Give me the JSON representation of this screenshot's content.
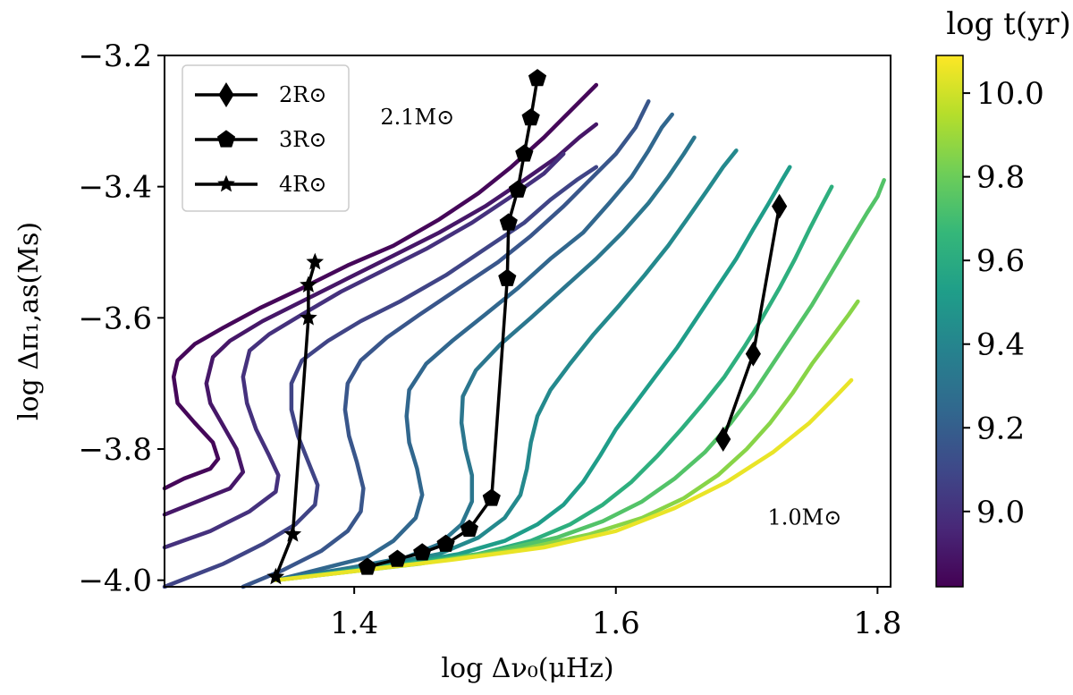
{
  "chart_data": {
    "type": "line",
    "xlabel": "log Δν₀(μHz)",
    "ylabel": "log Δπ₁,as(Ms)",
    "xlim": [
      1.255,
      1.81
    ],
    "ylim": [
      -4.01,
      -3.2
    ],
    "xticks": [
      1.4,
      1.6,
      1.8
    ],
    "xtick_labels": [
      "1.4",
      "1.6",
      "1.8"
    ],
    "yticks": [
      -3.2,
      -3.4,
      -3.6,
      -3.8,
      -4.0
    ],
    "ytick_labels": [
      "−3.2",
      "−3.4",
      "−3.6",
      "−3.8",
      "−4.0"
    ],
    "annotations": [
      {
        "text": "2.1M⊙",
        "x": 1.42,
        "y": -3.305
      },
      {
        "text": "1.0M⊙",
        "x": 1.716,
        "y": -3.915
      }
    ],
    "colorbar": {
      "title": "log t(yr)",
      "vmin": 8.82,
      "vmax": 10.09,
      "ticks": [
        9.0,
        9.2,
        9.4,
        9.6,
        9.8,
        10.0
      ],
      "tick_labels": [
        "9.0",
        "9.2",
        "9.4",
        "9.6",
        "9.8",
        "10.0"
      ],
      "colormap": [
        "#440154",
        "#482878",
        "#3e4989",
        "#31688e",
        "#26828e",
        "#1f9e89",
        "#35b779",
        "#6ece58",
        "#b5de2b",
        "#fde725"
      ]
    },
    "legend": {
      "position": "top-left",
      "entries": [
        {
          "label": "2R⊙",
          "marker": "diamond"
        },
        {
          "label": "3R⊙",
          "marker": "pentagon"
        },
        {
          "label": "4R⊙",
          "marker": "star"
        }
      ]
    },
    "tracks": [
      {
        "age": 8.84,
        "points": [
          [
            1.255,
            -3.86
          ],
          [
            1.27,
            -3.845
          ],
          [
            1.29,
            -3.83
          ],
          [
            1.296,
            -3.815
          ],
          [
            1.292,
            -3.79
          ],
          [
            1.278,
            -3.76
          ],
          [
            1.265,
            -3.73
          ],
          [
            1.262,
            -3.69
          ],
          [
            1.265,
            -3.665
          ],
          [
            1.278,
            -3.64
          ],
          [
            1.3,
            -3.615
          ],
          [
            1.328,
            -3.585
          ],
          [
            1.36,
            -3.555
          ],
          [
            1.395,
            -3.52
          ],
          [
            1.43,
            -3.49
          ],
          [
            1.465,
            -3.45
          ],
          [
            1.495,
            -3.41
          ],
          [
            1.52,
            -3.37
          ],
          [
            1.545,
            -3.325
          ],
          [
            1.56,
            -3.295
          ],
          [
            1.575,
            -3.265
          ],
          [
            1.585,
            -3.245
          ]
        ]
      },
      {
        "age": 8.9,
        "points": [
          [
            1.255,
            -3.9
          ],
          [
            1.28,
            -3.88
          ],
          [
            1.305,
            -3.86
          ],
          [
            1.315,
            -3.835
          ],
          [
            1.31,
            -3.8
          ],
          [
            1.3,
            -3.765
          ],
          [
            1.29,
            -3.73
          ],
          [
            1.287,
            -3.7
          ],
          [
            1.292,
            -3.66
          ],
          [
            1.305,
            -3.635
          ],
          [
            1.33,
            -3.605
          ],
          [
            1.36,
            -3.575
          ],
          [
            1.395,
            -3.54
          ],
          [
            1.43,
            -3.505
          ],
          [
            1.465,
            -3.47
          ],
          [
            1.5,
            -3.43
          ],
          [
            1.53,
            -3.39
          ],
          [
            1.555,
            -3.355
          ],
          [
            1.572,
            -3.325
          ],
          [
            1.585,
            -3.305
          ]
        ]
      },
      {
        "age": 9.0,
        "points": [
          [
            1.255,
            -3.95
          ],
          [
            1.29,
            -3.925
          ],
          [
            1.32,
            -3.895
          ],
          [
            1.34,
            -3.865
          ],
          [
            1.342,
            -3.84
          ],
          [
            1.335,
            -3.81
          ],
          [
            1.325,
            -3.77
          ],
          [
            1.318,
            -3.73
          ],
          [
            1.315,
            -3.69
          ],
          [
            1.32,
            -3.65
          ],
          [
            1.335,
            -3.625
          ],
          [
            1.36,
            -3.595
          ],
          [
            1.39,
            -3.56
          ],
          [
            1.42,
            -3.53
          ],
          [
            1.455,
            -3.495
          ],
          [
            1.49,
            -3.455
          ],
          [
            1.52,
            -3.415
          ],
          [
            1.545,
            -3.38
          ],
          [
            1.56,
            -3.35
          ]
        ]
      },
      {
        "age": 9.08,
        "points": [
          [
            1.255,
            -4.01
          ],
          [
            1.3,
            -3.975
          ],
          [
            1.33,
            -3.945
          ],
          [
            1.355,
            -3.915
          ],
          [
            1.37,
            -3.885
          ],
          [
            1.372,
            -3.855
          ],
          [
            1.365,
            -3.82
          ],
          [
            1.357,
            -3.78
          ],
          [
            1.352,
            -3.74
          ],
          [
            1.352,
            -3.7
          ],
          [
            1.36,
            -3.665
          ],
          [
            1.38,
            -3.635
          ],
          [
            1.405,
            -3.605
          ],
          [
            1.435,
            -3.575
          ],
          [
            1.47,
            -3.535
          ],
          [
            1.5,
            -3.495
          ],
          [
            1.53,
            -3.455
          ],
          [
            1.55,
            -3.42
          ],
          [
            1.57,
            -3.39
          ],
          [
            1.585,
            -3.37
          ]
        ]
      },
      {
        "age": 9.16,
        "points": [
          [
            1.315,
            -4.01
          ],
          [
            1.345,
            -3.985
          ],
          [
            1.375,
            -3.955
          ],
          [
            1.395,
            -3.925
          ],
          [
            1.405,
            -3.895
          ],
          [
            1.407,
            -3.86
          ],
          [
            1.402,
            -3.82
          ],
          [
            1.396,
            -3.78
          ],
          [
            1.393,
            -3.74
          ],
          [
            1.395,
            -3.7
          ],
          [
            1.405,
            -3.665
          ],
          [
            1.425,
            -3.63
          ],
          [
            1.45,
            -3.595
          ],
          [
            1.48,
            -3.555
          ],
          [
            1.51,
            -3.515
          ],
          [
            1.535,
            -3.475
          ],
          [
            1.56,
            -3.43
          ],
          [
            1.58,
            -3.39
          ],
          [
            1.6,
            -3.35
          ],
          [
            1.615,
            -3.31
          ],
          [
            1.625,
            -3.27
          ]
        ]
      },
      {
        "age": 9.24,
        "points": [
          [
            1.34,
            -4.0
          ],
          [
            1.37,
            -3.985
          ],
          [
            1.41,
            -3.965
          ],
          [
            1.43,
            -3.94
          ],
          [
            1.447,
            -3.905
          ],
          [
            1.452,
            -3.87
          ],
          [
            1.448,
            -3.83
          ],
          [
            1.442,
            -3.79
          ],
          [
            1.44,
            -3.75
          ],
          [
            1.442,
            -3.71
          ],
          [
            1.455,
            -3.67
          ],
          [
            1.475,
            -3.635
          ],
          [
            1.5,
            -3.595
          ],
          [
            1.525,
            -3.555
          ],
          [
            1.55,
            -3.51
          ],
          [
            1.575,
            -3.47
          ],
          [
            1.595,
            -3.425
          ],
          [
            1.612,
            -3.385
          ],
          [
            1.625,
            -3.345
          ],
          [
            1.635,
            -3.31
          ],
          [
            1.643,
            -3.29
          ]
        ]
      },
      {
        "age": 9.32,
        "points": [
          [
            1.34,
            -4.0
          ],
          [
            1.4,
            -3.98
          ],
          [
            1.44,
            -3.965
          ],
          [
            1.465,
            -3.945
          ],
          [
            1.482,
            -3.915
          ],
          [
            1.49,
            -3.88
          ],
          [
            1.49,
            -3.84
          ],
          [
            1.485,
            -3.8
          ],
          [
            1.482,
            -3.76
          ],
          [
            1.483,
            -3.72
          ],
          [
            1.493,
            -3.68
          ],
          [
            1.512,
            -3.64
          ],
          [
            1.535,
            -3.6
          ],
          [
            1.56,
            -3.555
          ],
          [
            1.585,
            -3.51
          ],
          [
            1.605,
            -3.47
          ],
          [
            1.625,
            -3.425
          ],
          [
            1.64,
            -3.385
          ],
          [
            1.652,
            -3.35
          ],
          [
            1.66,
            -3.325
          ]
        ]
      },
      {
        "age": 9.42,
        "points": [
          [
            1.34,
            -4.0
          ],
          [
            1.42,
            -3.978
          ],
          [
            1.465,
            -3.96
          ],
          [
            1.495,
            -3.935
          ],
          [
            1.515,
            -3.905
          ],
          [
            1.527,
            -3.87
          ],
          [
            1.532,
            -3.83
          ],
          [
            1.535,
            -3.79
          ],
          [
            1.54,
            -3.75
          ],
          [
            1.55,
            -3.71
          ],
          [
            1.565,
            -3.67
          ],
          [
            1.583,
            -3.625
          ],
          [
            1.603,
            -3.58
          ],
          [
            1.622,
            -3.535
          ],
          [
            1.64,
            -3.49
          ],
          [
            1.656,
            -3.445
          ],
          [
            1.67,
            -3.405
          ],
          [
            1.682,
            -3.37
          ],
          [
            1.692,
            -3.345
          ]
        ]
      },
      {
        "age": 9.52,
        "points": [
          [
            1.34,
            -4.0
          ],
          [
            1.43,
            -3.978
          ],
          [
            1.48,
            -3.96
          ],
          [
            1.515,
            -3.94
          ],
          [
            1.54,
            -3.915
          ],
          [
            1.56,
            -3.885
          ],
          [
            1.575,
            -3.85
          ],
          [
            1.588,
            -3.81
          ],
          [
            1.6,
            -3.77
          ],
          [
            1.615,
            -3.73
          ],
          [
            1.63,
            -3.69
          ],
          [
            1.647,
            -3.645
          ],
          [
            1.662,
            -3.6
          ],
          [
            1.677,
            -3.555
          ],
          [
            1.692,
            -3.51
          ],
          [
            1.705,
            -3.465
          ],
          [
            1.717,
            -3.425
          ],
          [
            1.727,
            -3.39
          ],
          [
            1.733,
            -3.37
          ]
        ]
      },
      {
        "age": 9.62,
        "points": [
          [
            1.34,
            -4.0
          ],
          [
            1.44,
            -3.975
          ],
          [
            1.495,
            -3.96
          ],
          [
            1.535,
            -3.94
          ],
          [
            1.565,
            -3.915
          ],
          [
            1.59,
            -3.885
          ],
          [
            1.612,
            -3.85
          ],
          [
            1.632,
            -3.81
          ],
          [
            1.65,
            -3.77
          ],
          [
            1.667,
            -3.73
          ],
          [
            1.683,
            -3.69
          ],
          [
            1.698,
            -3.645
          ],
          [
            1.712,
            -3.6
          ],
          [
            1.725,
            -3.555
          ],
          [
            1.737,
            -3.51
          ],
          [
            1.748,
            -3.465
          ],
          [
            1.757,
            -3.43
          ],
          [
            1.765,
            -3.4
          ]
        ]
      },
      {
        "age": 9.74,
        "points": [
          [
            1.34,
            -4.0
          ],
          [
            1.45,
            -3.975
          ],
          [
            1.51,
            -3.955
          ],
          [
            1.555,
            -3.935
          ],
          [
            1.59,
            -3.91
          ],
          [
            1.62,
            -3.88
          ],
          [
            1.645,
            -3.845
          ],
          [
            1.668,
            -3.805
          ],
          [
            1.688,
            -3.76
          ],
          [
            1.705,
            -3.715
          ],
          [
            1.72,
            -3.67
          ],
          [
            1.735,
            -3.625
          ],
          [
            1.75,
            -3.58
          ],
          [
            1.765,
            -3.53
          ],
          [
            1.78,
            -3.48
          ],
          [
            1.792,
            -3.44
          ],
          [
            1.8,
            -3.415
          ],
          [
            1.805,
            -3.39
          ]
        ]
      },
      {
        "age": 9.86,
        "points": [
          [
            1.34,
            -4.0
          ],
          [
            1.46,
            -3.972
          ],
          [
            1.53,
            -3.952
          ],
          [
            1.58,
            -3.93
          ],
          [
            1.62,
            -3.905
          ],
          [
            1.652,
            -3.875
          ],
          [
            1.678,
            -3.84
          ],
          [
            1.7,
            -3.8
          ],
          [
            1.718,
            -3.76
          ],
          [
            1.735,
            -3.715
          ],
          [
            1.75,
            -3.67
          ],
          [
            1.765,
            -3.63
          ],
          [
            1.778,
            -3.595
          ],
          [
            1.785,
            -3.575
          ]
        ]
      },
      {
        "age": 10.05,
        "points": [
          [
            1.34,
            -4.0
          ],
          [
            1.47,
            -3.97
          ],
          [
            1.545,
            -3.95
          ],
          [
            1.6,
            -3.925
          ],
          [
            1.645,
            -3.89
          ],
          [
            1.685,
            -3.85
          ],
          [
            1.72,
            -3.805
          ],
          [
            1.748,
            -3.76
          ],
          [
            1.768,
            -3.72
          ],
          [
            1.78,
            -3.695
          ]
        ]
      }
    ],
    "radius_lines": [
      {
        "label": "2R⊙",
        "marker": "diamond",
        "points": [
          [
            1.682,
            -3.785
          ],
          [
            1.705,
            -3.655
          ],
          [
            1.725,
            -3.43
          ]
        ]
      },
      {
        "label": "3R⊙",
        "marker": "pentagon",
        "points": [
          [
            1.41,
            -3.98
          ],
          [
            1.433,
            -3.968
          ],
          [
            1.452,
            -3.958
          ],
          [
            1.47,
            -3.945
          ],
          [
            1.488,
            -3.922
          ],
          [
            1.505,
            -3.875
          ],
          [
            1.517,
            -3.54
          ],
          [
            1.518,
            -3.455
          ],
          [
            1.525,
            -3.405
          ],
          [
            1.53,
            -3.35
          ],
          [
            1.535,
            -3.295
          ],
          [
            1.54,
            -3.235
          ]
        ]
      },
      {
        "label": "4R⊙",
        "marker": "star",
        "points": [
          [
            1.34,
            -3.995
          ],
          [
            1.353,
            -3.93
          ],
          [
            1.365,
            -3.6
          ],
          [
            1.365,
            -3.55
          ],
          [
            1.37,
            -3.515
          ]
        ]
      }
    ]
  }
}
